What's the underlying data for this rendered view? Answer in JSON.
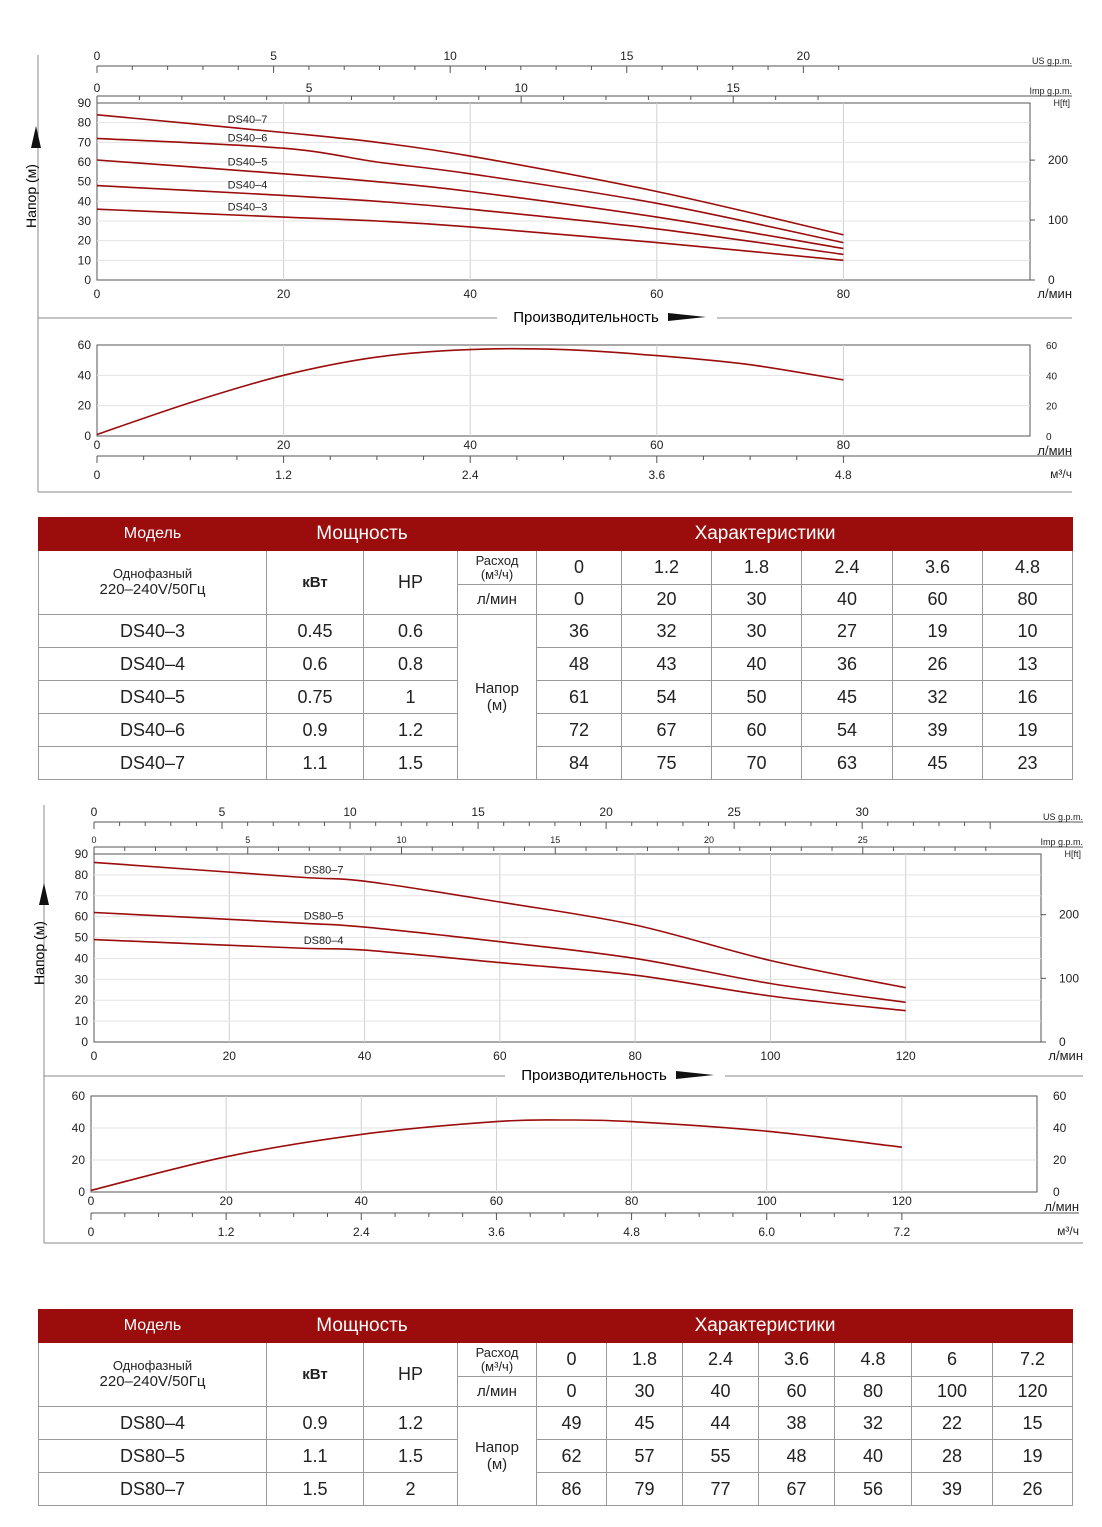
{
  "chart_data": [
    {
      "type": "line",
      "id": "ds40-head",
      "xlabel": "Производительность",
      "ylabel": "Напор (м)",
      "x_unit": "л/мин",
      "right_unit": "H[ft]",
      "top_axis_1_label": "US g.p.m.",
      "top_axis_2_label": "Imp g.p.m.",
      "xlim": [
        0,
        100
      ],
      "ylim": [
        0,
        90
      ],
      "x_ticks": [
        0,
        20,
        40,
        60,
        80
      ],
      "y_ticks": [
        0,
        10,
        20,
        30,
        40,
        50,
        60,
        70,
        80,
        90
      ],
      "right_ticks": [
        0,
        100,
        200
      ],
      "top_axis_1_ticks": [
        0,
        5,
        10,
        15,
        20
      ],
      "top_axis_2_ticks": [
        0,
        5,
        10,
        15
      ],
      "x": [
        0,
        20,
        30,
        40,
        60,
        80
      ],
      "series": [
        {
          "name": "DS40-7",
          "values": [
            84,
            75,
            70,
            63,
            45,
            23
          ]
        },
        {
          "name": "DS40-6",
          "values": [
            72,
            67,
            60,
            54,
            39,
            19
          ]
        },
        {
          "name": "DS40-5",
          "values": [
            61,
            54,
            50,
            45,
            32,
            16
          ]
        },
        {
          "name": "DS40-4",
          "values": [
            48,
            43,
            40,
            36,
            26,
            13
          ]
        },
        {
          "name": "DS40-3",
          "values": [
            36,
            32,
            30,
            27,
            19,
            10
          ]
        }
      ],
      "grid": true,
      "color": "#9b0c0c"
    },
    {
      "type": "line",
      "id": "ds40-eff",
      "x_unit": "л/мин",
      "x2_unit": "м³/ч",
      "xlim": [
        0,
        100
      ],
      "ylim": [
        0,
        60
      ],
      "x_ticks": [
        0,
        20,
        40,
        60,
        80
      ],
      "x2_ticks": [
        "0",
        "1.2",
        "2.4",
        "3.6",
        "4.8"
      ],
      "y_ticks": [
        0,
        20,
        40,
        60
      ],
      "series": [
        {
          "values": [
            [
              0,
              1
            ],
            [
              10,
              22
            ],
            [
              20,
              40
            ],
            [
              30,
              52
            ],
            [
              40,
              57
            ],
            [
              50,
              57
            ],
            [
              60,
              53
            ],
            [
              70,
              47
            ],
            [
              80,
              37
            ]
          ]
        }
      ],
      "grid": true,
      "color": "#9b0c0c"
    },
    {
      "type": "line",
      "id": "ds80-head",
      "xlabel": "Производительность",
      "ylabel": "Напор (м)",
      "x_unit": "л/мин",
      "right_unit": "H[ft]",
      "top_axis_1_label": "US g.p.m.",
      "top_axis_2_label": "Imp g.p.m.",
      "xlim": [
        0,
        140
      ],
      "ylim": [
        0,
        90
      ],
      "x_ticks": [
        0,
        20,
        40,
        60,
        80,
        100,
        120
      ],
      "y_ticks": [
        0,
        10,
        20,
        30,
        40,
        50,
        60,
        70,
        80,
        90
      ],
      "right_ticks": [
        0,
        100,
        200
      ],
      "top_axis_1_ticks": [
        0,
        5,
        10,
        15,
        20,
        25,
        30
      ],
      "top_axis_2_ticks": [
        0,
        5,
        10,
        15,
        20,
        25
      ],
      "x": [
        0,
        30,
        40,
        60,
        80,
        100,
        120
      ],
      "series": [
        {
          "name": "DS80-7",
          "values": [
            86,
            79,
            77,
            67,
            56,
            39,
            26
          ]
        },
        {
          "name": "DS80-5",
          "values": [
            62,
            57,
            55,
            48,
            40,
            28,
            19
          ]
        },
        {
          "name": "DS80-4",
          "values": [
            49,
            45,
            44,
            38,
            32,
            22,
            15
          ]
        }
      ],
      "grid": true,
      "color": "#9b0c0c"
    },
    {
      "type": "line",
      "id": "ds80-eff",
      "x_unit": "л/мин",
      "x2_unit": "м³/ч",
      "xlim": [
        0,
        140
      ],
      "ylim": [
        0,
        60
      ],
      "x_ticks": [
        0,
        20,
        40,
        60,
        80,
        100,
        120
      ],
      "x2_ticks": [
        "0",
        "1.2",
        "2.4",
        "3.6",
        "4.8",
        "6.0",
        "7.2"
      ],
      "y_ticks": [
        0,
        20,
        40,
        60
      ],
      "series": [
        {
          "values": [
            [
              0,
              1
            ],
            [
              20,
              22
            ],
            [
              40,
              36
            ],
            [
              60,
              44
            ],
            [
              70,
              45
            ],
            [
              80,
              44
            ],
            [
              100,
              38
            ],
            [
              120,
              28
            ]
          ]
        }
      ],
      "grid": true,
      "color": "#9b0c0c"
    }
  ],
  "tables": [
    {
      "id": "ds40",
      "model_header": "Модель",
      "power_header": "Мощность",
      "char_header": "Характеристики",
      "phase_line1": "Однофазный",
      "phase_line2": "220–240V/50Гц",
      "kw": "кВт",
      "hp": "HP",
      "flow_m3_label_1": "Расход",
      "flow_m3_label_2": "(м³/ч)",
      "flow_lpm_label": "л/мин",
      "head_label_1": "Напор",
      "head_label_2": "(м)",
      "flow_m3": [
        "0",
        "1.2",
        "1.8",
        "2.4",
        "3.6",
        "4.8"
      ],
      "flow_lpm": [
        "0",
        "20",
        "30",
        "40",
        "60",
        "80"
      ],
      "rows": [
        {
          "model": "DS40–3",
          "kw": "0.45",
          "hp": "0.6",
          "head": [
            "36",
            "32",
            "30",
            "27",
            "19",
            "10"
          ]
        },
        {
          "model": "DS40–4",
          "kw": "0.6",
          "hp": "0.8",
          "head": [
            "48",
            "43",
            "40",
            "36",
            "26",
            "13"
          ]
        },
        {
          "model": "DS40–5",
          "kw": "0.75",
          "hp": "1",
          "head": [
            "61",
            "54",
            "50",
            "45",
            "32",
            "16"
          ]
        },
        {
          "model": "DS40–6",
          "kw": "0.9",
          "hp": "1.2",
          "head": [
            "72",
            "67",
            "60",
            "54",
            "39",
            "19"
          ]
        },
        {
          "model": "DS40–7",
          "kw": "1.1",
          "hp": "1.5",
          "head": [
            "84",
            "75",
            "70",
            "63",
            "45",
            "23"
          ]
        }
      ]
    },
    {
      "id": "ds80",
      "model_header": "Модель",
      "power_header": "Мощность",
      "char_header": "Характеристики",
      "phase_line1": "Однофазный",
      "phase_line2": "220–240V/50Гц",
      "kw": "кВт",
      "hp": "HP",
      "flow_m3_label_1": "Расход",
      "flow_m3_label_2": "(м³/ч)",
      "flow_lpm_label": "л/мин",
      "head_label_1": "Напор",
      "head_label_2": "(м)",
      "flow_m3": [
        "0",
        "1.8",
        "2.4",
        "3.6",
        "4.8",
        "6",
        "7.2"
      ],
      "flow_lpm": [
        "0",
        "30",
        "40",
        "60",
        "80",
        "100",
        "120"
      ],
      "rows": [
        {
          "model": "DS80–4",
          "kw": "0.9",
          "hp": "1.2",
          "head": [
            "49",
            "45",
            "44",
            "38",
            "32",
            "22",
            "15"
          ]
        },
        {
          "model": "DS80–5",
          "kw": "1.1",
          "hp": "1.5",
          "head": [
            "62",
            "57",
            "55",
            "48",
            "40",
            "28",
            "19"
          ]
        },
        {
          "model": "DS80–7",
          "kw": "1.5",
          "hp": "2",
          "head": [
            "86",
            "79",
            "77",
            "67",
            "56",
            "39",
            "26"
          ]
        }
      ]
    }
  ]
}
